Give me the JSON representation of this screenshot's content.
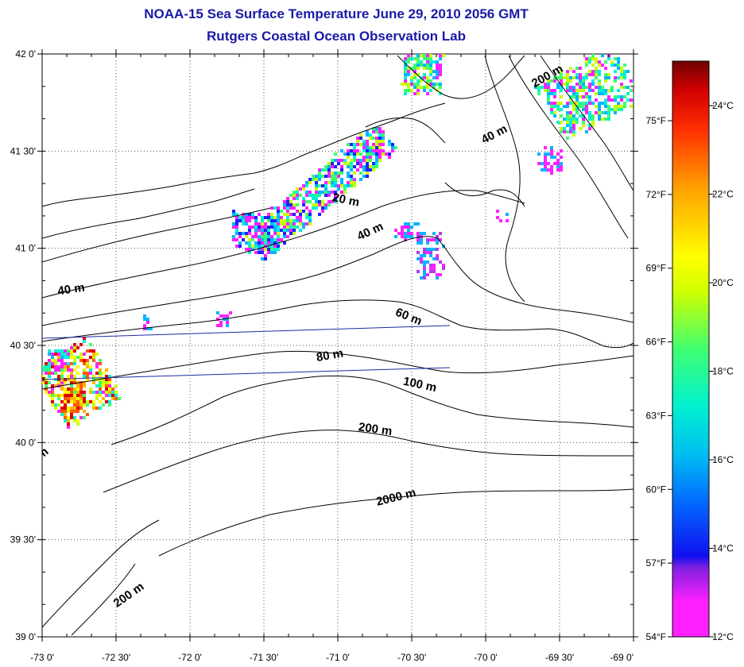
{
  "title_line1": "NOAA-15 Sea Surface Temperature June 29, 2010 2056 GMT",
  "title_line2": "Rutgers Coastal Ocean Observation Lab",
  "map": {
    "lat_labels": [
      "42 0'",
      "41 30'",
      "41 0'",
      "40 30'",
      "40 0'",
      "39 30'",
      "39 0'"
    ],
    "lon_labels": [
      "-73 0'",
      "-72 30'",
      "-72 0'",
      "-71 30'",
      "-71 0'",
      "-70 30'",
      "-70 0'",
      "-69 30'",
      "-69 0'"
    ],
    "lat_range": [
      39.0,
      42.0
    ],
    "lon_range": [
      -73.0,
      -69.0
    ],
    "grid": "dotted",
    "contour_labels": [
      {
        "text": "20 m",
        "lon": -70.95,
        "lat": 41.23,
        "angle": 12
      },
      {
        "text": "40 m",
        "lon": -70.77,
        "lat": 41.07,
        "angle": -25
      },
      {
        "text": "40 m",
        "lon": -69.93,
        "lat": 41.57,
        "angle": -28
      },
      {
        "text": "200 m",
        "lon": -69.57,
        "lat": 41.87,
        "angle": -30
      },
      {
        "text": "40 m",
        "lon": -72.8,
        "lat": 40.77,
        "angle": -8
      },
      {
        "text": "60 m",
        "lon": -70.53,
        "lat": 40.63,
        "angle": 22
      },
      {
        "text": "80 m",
        "lon": -71.05,
        "lat": 40.43,
        "angle": -10
      },
      {
        "text": "100 m",
        "lon": -70.45,
        "lat": 40.28,
        "angle": 12
      },
      {
        "text": "200 m",
        "lon": -70.75,
        "lat": 40.05,
        "angle": 8
      },
      {
        "text": "2000 m",
        "lon": -70.6,
        "lat": 39.7,
        "angle": -14
      },
      {
        "text": "200 m",
        "lon": -72.4,
        "lat": 39.2,
        "angle": -35
      },
      {
        "text": "m",
        "lon": -72.98,
        "lat": 39.93,
        "angle": -40
      }
    ]
  },
  "colorbar": {
    "celsius_labels": [
      "24°C",
      "22°C",
      "20°C",
      "18°C",
      "16°C",
      "14°C",
      "12°C"
    ],
    "fahrenheit_labels": [
      "75°F",
      "72°F",
      "69°F",
      "66°F",
      "63°F",
      "60°F",
      "57°F",
      "54°F"
    ],
    "colors": [
      "#ff20ff",
      "#b03ce8",
      "#2020ff",
      "#00b4ff",
      "#00f0d8",
      "#3cff6c",
      "#c8ff00",
      "#ffff00",
      "#ffb400",
      "#ff5a00",
      "#e00000",
      "#7a0000"
    ]
  }
}
